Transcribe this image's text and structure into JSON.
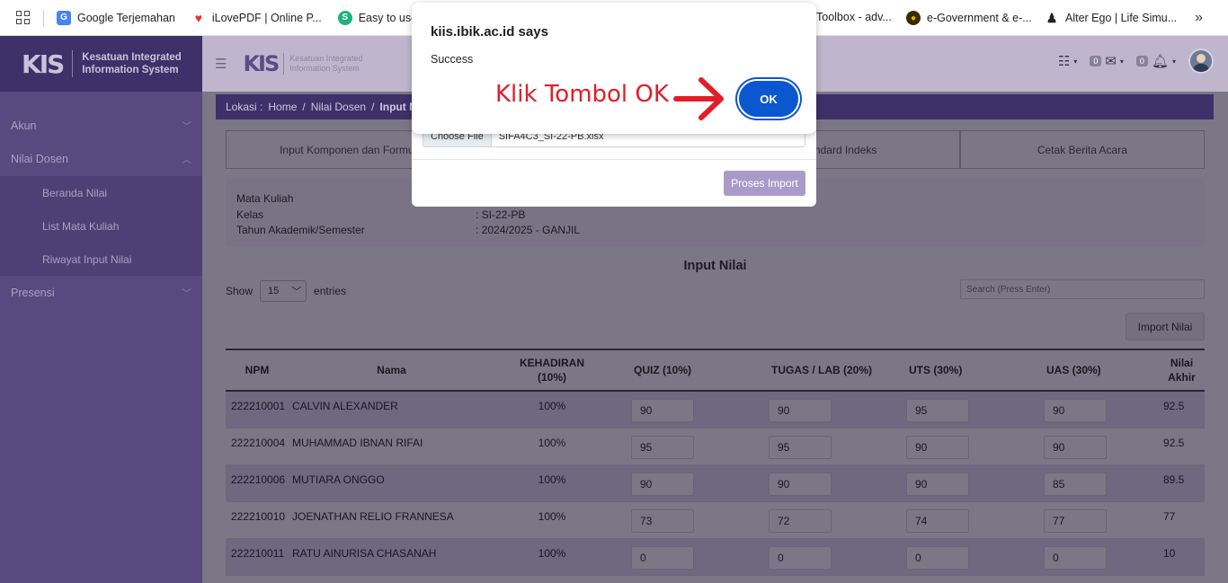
{
  "bookmarks": [
    {
      "label": "Google Terjemahan",
      "color": "#4285f4",
      "glyph": "G"
    },
    {
      "label": "iLovePDF | Online P...",
      "color": "#e5322d",
      "glyph": "♥"
    },
    {
      "label": "Easy to use On",
      "color": "#1cb37a",
      "glyph": "S"
    },
    {
      "label": "Toolbox - adv...",
      "color": "",
      "glyph": ""
    },
    {
      "label": "e-Government & e-...",
      "color": "#c9a400",
      "glyph": "●"
    },
    {
      "label": "Alter Ego | Life Simu...",
      "color": "#222",
      "glyph": "♟"
    }
  ],
  "bookmarks_more": "»",
  "brand": {
    "mark": "KIS",
    "line1": "Kesatuan Integrated",
    "line2": "Information System"
  },
  "topbar": {
    "badge1": "0",
    "badge2": "0"
  },
  "sidebar": {
    "akun": "Akun",
    "nilai_dosen": "Nilai Dosen",
    "sub": [
      "Beranda Nilai",
      "List Mata Kuliah",
      "Riwayat Input Nilai"
    ],
    "presensi": "Presensi"
  },
  "breadcrumb": {
    "prefix": "Lokasi :",
    "home": "Home",
    "nilai": "Nilai Dosen",
    "current": "Input Ni"
  },
  "tabs": [
    "Input Komponen dan Formul",
    "",
    "Standard Indeks",
    "Cetak Berita Acara"
  ],
  "info": {
    "rows": [
      {
        "k": "Mata Kuliah",
        "v": ""
      },
      {
        "k": "Kelas",
        "v": ":  SI-22-PB"
      },
      {
        "k": "Tahun Akademik/Semester",
        "v": ":  2024/2025 - GANJIL"
      }
    ]
  },
  "section_title": "Input Nilai",
  "show": {
    "label": "Show",
    "value": "15",
    "suffix": "entries"
  },
  "search_placeholder": "Search (Press Enter)",
  "import_button": "Import Nilai",
  "table": {
    "headers": {
      "npm": "NPM",
      "nama": "Nama",
      "hadir": "KEHADIRAN (10%)",
      "quiz": "QUIZ (10%)",
      "tugas": "TUGAS / LAB (20%)",
      "uts": "UTS (30%)",
      "uas": "UAS (30%)",
      "akhir": "Nilai Akhir"
    },
    "rows": [
      {
        "npm": "222210001",
        "nama": "CALVIN ALEXANDER",
        "hadir": "100%",
        "quiz": "90",
        "tugas": "90",
        "uts": "95",
        "uas": "90",
        "akhir": "92.5"
      },
      {
        "npm": "222210004",
        "nama": "MUHAMMAD IBNAN RIFAI",
        "hadir": "100%",
        "quiz": "95",
        "tugas": "95",
        "uts": "90",
        "uas": "90",
        "akhir": "92.5"
      },
      {
        "npm": "222210006",
        "nama": "MUTIARA ONGGO",
        "hadir": "100%",
        "quiz": "90",
        "tugas": "90",
        "uts": "90",
        "uas": "85",
        "akhir": "89.5"
      },
      {
        "npm": "222210010",
        "nama": "JOENATHAN RELIO FRANNESA",
        "hadir": "100%",
        "quiz": "73",
        "tugas": "72",
        "uts": "74",
        "uas": "77",
        "akhir": "77"
      },
      {
        "npm": "222210011",
        "nama": "RATU AINURISA CHASANAH",
        "hadir": "100%",
        "quiz": "0",
        "tugas": "0",
        "uts": "0",
        "uas": "0",
        "akhir": "10"
      }
    ]
  },
  "import_modal": {
    "choose": "Choose File",
    "filename": "SIFA4C3_SI-22-PB.xlsx",
    "proses": "Proses Import"
  },
  "alert": {
    "title": "kiis.ibik.ac.id says",
    "message": "Success",
    "ok": "OK"
  },
  "annotation": "Klik Tombol OK",
  "colors": {
    "sidebar": "#58497f",
    "ok_button": "#0b57d0",
    "annotation": "#e11d2a"
  }
}
